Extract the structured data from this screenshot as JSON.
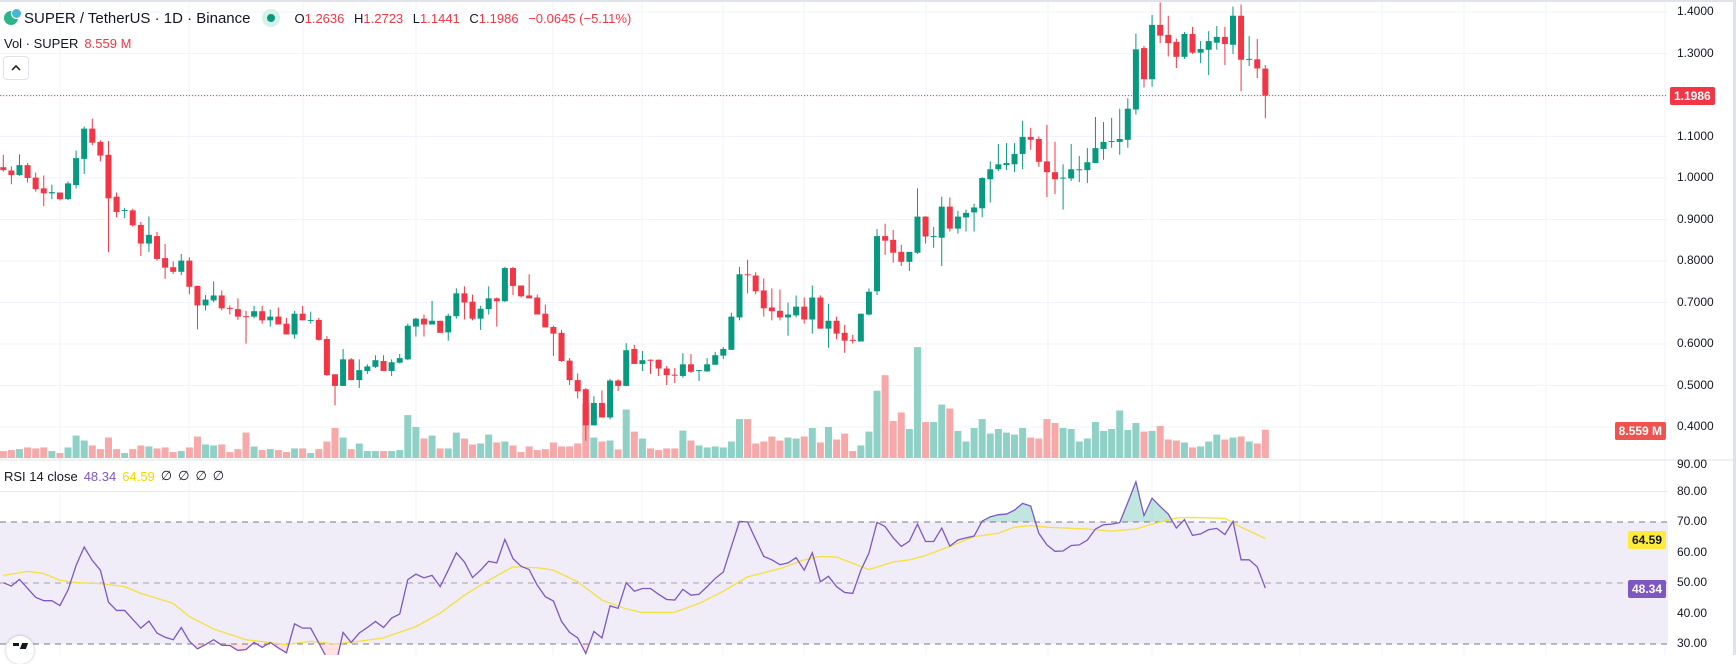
{
  "header": {
    "symbol_title": "SUPER / TetherUS · 1D · Binance",
    "market_status": "open",
    "ohlc": {
      "o_label": "O",
      "o": "1.2636",
      "h_label": "H",
      "h": "1.2723",
      "l_label": "L",
      "l": "1.1441",
      "c_label": "C",
      "c": "1.1986"
    },
    "change": "−0.0645 (−5.11%)"
  },
  "volume_legend": {
    "label": "Vol · SUPER",
    "value": "8.559 M"
  },
  "collapse_button": {
    "icon": "chevron-up-icon",
    "label": "^"
  },
  "rsi_legend": {
    "label": "RSI 14 close",
    "rsi": "48.34",
    "ma": "64.59",
    "extras": [
      "∅",
      "∅",
      "∅",
      "∅"
    ]
  },
  "price_axis": {
    "ticks": [
      "1.4000",
      "1.3000",
      "1.1000",
      "1.0000",
      "0.9000",
      "0.8000",
      "0.7000",
      "0.6000",
      "0.5000",
      "0.4000"
    ],
    "last_price": "1.1986",
    "volume_tag": "8.559 M"
  },
  "rsi_axis": {
    "ticks": [
      "90.00",
      "80.00",
      "70.00",
      "60.00",
      "50.00",
      "40.00",
      "30.00"
    ],
    "rsi_tag": "48.34",
    "ma_tag": "64.59"
  },
  "watermark_logo": "TV",
  "colors": {
    "up": "#089981",
    "down": "#f23645",
    "up_volume": "#8fd1c6",
    "down_volume": "#f7a8a9",
    "rsi_line": "#7e57c2",
    "rsi_ma": "#f5e13c",
    "rsi_band": "#f0ecf8",
    "last_price": "#f23645",
    "volume_tag": "#ef5350"
  },
  "chart_data": {
    "type": "candlestick",
    "ylim": [
      0.4,
      1.4
    ],
    "rsi_ylim": [
      30,
      90
    ],
    "rsi_levels": [
      70,
      50,
      30
    ],
    "ohlc": [
      [
        1.026,
        1.056,
        1.015,
        1.019
      ],
      [
        1.018,
        1.028,
        0.985,
        1.007
      ],
      [
        1.007,
        1.057,
        1.005,
        1.031
      ],
      [
        1.031,
        1.036,
        0.989,
        1.0
      ],
      [
        1.001,
        1.013,
        0.967,
        0.973
      ],
      [
        0.975,
        1.006,
        0.932,
        0.963
      ],
      [
        0.963,
        0.984,
        0.949,
        0.966
      ],
      [
        0.965,
        0.965,
        0.946,
        0.949
      ],
      [
        0.949,
        0.992,
        0.947,
        0.987
      ],
      [
        0.983,
        1.066,
        0.975,
        1.048
      ],
      [
        1.046,
        1.124,
        1.01,
        1.119
      ],
      [
        1.119,
        1.143,
        1.079,
        1.085
      ],
      [
        1.087,
        1.091,
        1.04,
        1.054
      ],
      [
        1.056,
        1.089,
        0.821,
        0.951
      ],
      [
        0.955,
        0.965,
        0.905,
        0.918
      ],
      [
        0.921,
        0.928,
        0.903,
        0.923
      ],
      [
        0.922,
        0.926,
        0.883,
        0.886
      ],
      [
        0.887,
        0.894,
        0.812,
        0.842
      ],
      [
        0.842,
        0.907,
        0.822,
        0.863
      ],
      [
        0.86,
        0.87,
        0.801,
        0.805
      ],
      [
        0.807,
        0.841,
        0.757,
        0.784
      ],
      [
        0.785,
        0.799,
        0.769,
        0.774
      ],
      [
        0.774,
        0.817,
        0.766,
        0.801
      ],
      [
        0.801,
        0.809,
        0.72,
        0.738
      ],
      [
        0.74,
        0.741,
        0.635,
        0.693
      ],
      [
        0.693,
        0.718,
        0.681,
        0.707
      ],
      [
        0.705,
        0.751,
        0.701,
        0.717
      ],
      [
        0.717,
        0.729,
        0.681,
        0.686
      ],
      [
        0.687,
        0.693,
        0.671,
        0.686
      ],
      [
        0.684,
        0.71,
        0.658,
        0.666
      ],
      [
        0.667,
        0.68,
        0.601,
        0.666
      ],
      [
        0.666,
        0.692,
        0.662,
        0.679
      ],
      [
        0.679,
        0.692,
        0.649,
        0.657
      ],
      [
        0.657,
        0.683,
        0.642,
        0.666
      ],
      [
        0.666,
        0.688,
        0.647,
        0.647
      ],
      [
        0.649,
        0.663,
        0.623,
        0.623
      ],
      [
        0.623,
        0.68,
        0.613,
        0.673
      ],
      [
        0.673,
        0.692,
        0.657,
        0.657
      ],
      [
        0.657,
        0.678,
        0.649,
        0.658
      ],
      [
        0.658,
        0.663,
        0.608,
        0.61
      ],
      [
        0.612,
        0.619,
        0.523,
        0.525
      ],
      [
        0.527,
        0.527,
        0.452,
        0.499
      ],
      [
        0.499,
        0.588,
        0.499,
        0.563
      ],
      [
        0.563,
        0.566,
        0.513,
        0.513
      ],
      [
        0.513,
        0.563,
        0.494,
        0.537
      ],
      [
        0.535,
        0.551,
        0.528,
        0.546
      ],
      [
        0.545,
        0.573,
        0.542,
        0.561
      ],
      [
        0.559,
        0.573,
        0.535,
        0.535
      ],
      [
        0.535,
        0.563,
        0.523,
        0.556
      ],
      [
        0.555,
        0.576,
        0.553,
        0.566
      ],
      [
        0.563,
        0.649,
        0.561,
        0.644
      ],
      [
        0.642,
        0.663,
        0.618,
        0.661
      ],
      [
        0.661,
        0.671,
        0.618,
        0.647
      ],
      [
        0.647,
        0.704,
        0.647,
        0.656
      ],
      [
        0.656,
        0.656,
        0.627,
        0.627
      ],
      [
        0.628,
        0.673,
        0.608,
        0.668
      ],
      [
        0.667,
        0.734,
        0.661,
        0.722
      ],
      [
        0.722,
        0.739,
        0.659,
        0.7
      ],
      [
        0.702,
        0.719,
        0.657,
        0.661
      ],
      [
        0.661,
        0.692,
        0.634,
        0.685
      ],
      [
        0.684,
        0.739,
        0.671,
        0.71
      ],
      [
        0.71,
        0.712,
        0.642,
        0.703
      ],
      [
        0.703,
        0.786,
        0.701,
        0.783
      ],
      [
        0.783,
        0.786,
        0.718,
        0.74
      ],
      [
        0.741,
        0.741,
        0.712,
        0.715
      ],
      [
        0.717,
        0.768,
        0.71,
        0.71
      ],
      [
        0.712,
        0.719,
        0.671,
        0.671
      ],
      [
        0.673,
        0.695,
        0.64,
        0.64
      ],
      [
        0.641,
        0.644,
        0.571,
        0.625
      ],
      [
        0.627,
        0.634,
        0.557,
        0.559
      ],
      [
        0.56,
        0.566,
        0.501,
        0.513
      ],
      [
        0.513,
        0.529,
        0.469,
        0.486
      ],
      [
        0.491,
        0.494,
        0.367,
        0.404
      ],
      [
        0.404,
        0.474,
        0.404,
        0.458
      ],
      [
        0.458,
        0.488,
        0.423,
        0.423
      ],
      [
        0.423,
        0.516,
        0.418,
        0.512
      ],
      [
        0.512,
        0.515,
        0.487,
        0.499
      ],
      [
        0.499,
        0.602,
        0.499,
        0.585
      ],
      [
        0.588,
        0.598,
        0.552,
        0.552
      ],
      [
        0.552,
        0.583,
        0.535,
        0.561
      ],
      [
        0.562,
        0.563,
        0.528,
        0.56
      ],
      [
        0.562,
        0.563,
        0.523,
        0.541
      ],
      [
        0.541,
        0.547,
        0.501,
        0.525
      ],
      [
        0.526,
        0.542,
        0.506,
        0.525
      ],
      [
        0.523,
        0.578,
        0.519,
        0.551
      ],
      [
        0.551,
        0.576,
        0.53,
        0.533
      ],
      [
        0.535,
        0.537,
        0.511,
        0.537
      ],
      [
        0.534,
        0.566,
        0.533,
        0.551
      ],
      [
        0.55,
        0.581,
        0.55,
        0.573
      ],
      [
        0.572,
        0.593,
        0.564,
        0.588
      ],
      [
        0.586,
        0.675,
        0.586,
        0.666
      ],
      [
        0.664,
        0.786,
        0.657,
        0.768
      ],
      [
        0.768,
        0.803,
        0.722,
        0.767
      ],
      [
        0.765,
        0.773,
        0.72,
        0.727
      ],
      [
        0.729,
        0.758,
        0.666,
        0.686
      ],
      [
        0.688,
        0.734,
        0.657,
        0.679
      ],
      [
        0.68,
        0.731,
        0.657,
        0.664
      ],
      [
        0.664,
        0.7,
        0.62,
        0.671
      ],
      [
        0.669,
        0.717,
        0.664,
        0.69
      ],
      [
        0.69,
        0.712,
        0.649,
        0.659
      ],
      [
        0.659,
        0.741,
        0.625,
        0.712
      ],
      [
        0.712,
        0.717,
        0.637,
        0.637
      ],
      [
        0.637,
        0.697,
        0.591,
        0.656
      ],
      [
        0.656,
        0.666,
        0.611,
        0.625
      ],
      [
        0.627,
        0.646,
        0.579,
        0.608
      ],
      [
        0.61,
        0.622,
        0.601,
        0.608
      ],
      [
        0.606,
        0.673,
        0.606,
        0.673
      ],
      [
        0.671,
        0.734,
        0.669,
        0.726
      ],
      [
        0.727,
        0.877,
        0.718,
        0.86
      ],
      [
        0.86,
        0.89,
        0.815,
        0.849
      ],
      [
        0.851,
        0.875,
        0.796,
        0.82
      ],
      [
        0.822,
        0.839,
        0.788,
        0.798
      ],
      [
        0.798,
        0.822,
        0.776,
        0.822
      ],
      [
        0.82,
        0.975,
        0.817,
        0.907
      ],
      [
        0.907,
        0.908,
        0.842,
        0.859
      ],
      [
        0.859,
        0.882,
        0.832,
        0.86
      ],
      [
        0.856,
        0.955,
        0.788,
        0.931
      ],
      [
        0.931,
        0.953,
        0.871,
        0.878
      ],
      [
        0.878,
        0.921,
        0.866,
        0.907
      ],
      [
        0.905,
        0.924,
        0.871,
        0.916
      ],
      [
        0.917,
        0.938,
        0.871,
        0.929
      ],
      [
        0.927,
        1.002,
        0.905,
        1.0
      ],
      [
        0.997,
        1.04,
        0.941,
        1.021
      ],
      [
        1.021,
        1.082,
        1.017,
        1.033
      ],
      [
        1.031,
        1.084,
        1.019,
        1.036
      ],
      [
        1.033,
        1.084,
        1.014,
        1.058
      ],
      [
        1.058,
        1.138,
        1.021,
        1.099
      ],
      [
        1.099,
        1.121,
        1.068,
        1.092
      ],
      [
        1.094,
        1.1,
        1.027,
        1.039
      ],
      [
        1.04,
        1.128,
        0.954,
        1.014
      ],
      [
        1.014,
        1.087,
        0.961,
        0.997
      ],
      [
        0.999,
        1.033,
        0.924,
        1.001
      ],
      [
        0.999,
        1.082,
        0.993,
        1.021
      ],
      [
        1.019,
        1.053,
        0.99,
        1.021
      ],
      [
        1.019,
        1.072,
        0.988,
        1.038
      ],
      [
        1.036,
        1.147,
        1.036,
        1.072
      ],
      [
        1.07,
        1.135,
        1.044,
        1.087
      ],
      [
        1.087,
        1.145,
        1.073,
        1.089
      ],
      [
        1.087,
        1.167,
        1.056,
        1.094
      ],
      [
        1.092,
        1.192,
        1.073,
        1.167
      ],
      [
        1.165,
        1.348,
        1.153,
        1.31
      ],
      [
        1.313,
        1.318,
        1.218,
        1.238
      ],
      [
        1.238,
        1.393,
        1.22,
        1.369
      ],
      [
        1.369,
        1.423,
        1.325,
        1.343
      ],
      [
        1.345,
        1.391,
        1.293,
        1.325
      ],
      [
        1.328,
        1.336,
        1.265,
        1.292
      ],
      [
        1.292,
        1.352,
        1.287,
        1.347
      ],
      [
        1.347,
        1.364,
        1.299,
        1.302
      ],
      [
        1.302,
        1.33,
        1.277,
        1.311
      ],
      [
        1.309,
        1.354,
        1.248,
        1.33
      ],
      [
        1.326,
        1.366,
        1.309,
        1.34
      ],
      [
        1.34,
        1.364,
        1.272,
        1.323
      ],
      [
        1.321,
        1.413,
        1.299,
        1.391
      ],
      [
        1.391,
        1.418,
        1.209,
        1.285
      ],
      [
        1.285,
        1.342,
        1.27,
        1.287
      ],
      [
        1.286,
        1.335,
        1.241,
        1.264
      ],
      [
        1.2636,
        1.2723,
        1.1441,
        1.1986
      ]
    ],
    "volume_millions": [
      2.1,
      2.4,
      2.7,
      3.2,
      2.9,
      3.2,
      2.1,
      1.5,
      3.2,
      6.8,
      5.3,
      3.8,
      2.7,
      6.2,
      2.7,
      1.5,
      2.7,
      3.8,
      3.5,
      2.9,
      3.2,
      1.8,
      2.1,
      3.2,
      6.5,
      4.1,
      3.8,
      4.1,
      1.8,
      2.7,
      7.7,
      3.5,
      2.4,
      2.7,
      2.4,
      1.8,
      2.9,
      2.9,
      1.5,
      2.7,
      5.0,
      9.1,
      6.2,
      2.7,
      4.4,
      2.1,
      2.1,
      2.1,
      2.1,
      2.4,
      13.0,
      9.4,
      5.9,
      6.8,
      2.9,
      2.9,
      7.7,
      5.9,
      4.1,
      4.4,
      7.1,
      4.7,
      5.0,
      3.8,
      1.8,
      3.5,
      2.4,
      2.7,
      4.7,
      3.5,
      3.5,
      4.4,
      16.5,
      6.2,
      5.0,
      5.3,
      2.6,
      14.7,
      8.0,
      5.9,
      2.9,
      2.4,
      2.9,
      2.9,
      8.3,
      5.3,
      3.8,
      3.2,
      3.5,
      3.2,
      5.0,
      11.8,
      11.8,
      4.4,
      5.0,
      6.5,
      5.3,
      6.2,
      5.9,
      6.5,
      9.1,
      4.7,
      9.4,
      5.6,
      7.4,
      2.1,
      3.8,
      8.0,
      20.4,
      25.1,
      11.2,
      13.8,
      8.8,
      33.6,
      10.9,
      10.9,
      16.2,
      15.0,
      8.2,
      5.0,
      9.1,
      11.8,
      7.4,
      8.8,
      7.7,
      7.1,
      9.1,
      6.2,
      5.9,
      11.8,
      10.6,
      9.1,
      8.8,
      5.0,
      5.9,
      10.9,
      8.2,
      8.8,
      14.4,
      8.5,
      10.6,
      8.0,
      8.2,
      9.7,
      5.6,
      5.3,
      4.7,
      3.2,
      3.5,
      5.0,
      7.1,
      5.6,
      6.2,
      6.5,
      5.0,
      4.4,
      8.559
    ],
    "rsi": [
      50.1,
      49,
      51.2,
      48.2,
      45.3,
      44.2,
      44.2,
      42.6,
      47.7,
      55.8,
      61.8,
      57.4,
      54.2,
      43.7,
      41,
      41,
      38.1,
      35.2,
      37.5,
      33.6,
      32.2,
      31.4,
      35.4,
      30.9,
      28.4,
      29.8,
      31.4,
      29.6,
      29.5,
      27.9,
      28.2,
      30.5,
      28.9,
      30.5,
      28.7,
      27.1,
      36.6,
      35.2,
      35.2,
      30.3,
      25.4,
      22,
      33.8,
      30.5,
      33.6,
      35.4,
      37.4,
      35.4,
      38.5,
      39.8,
      51.1,
      52.9,
      51.7,
      52.5,
      48.8,
      54.2,
      59.9,
      56.9,
      51.8,
      54.2,
      57.1,
      56.6,
      64.3,
      58,
      55.5,
      54.4,
      49.3,
      45.5,
      44.1,
      37.4,
      33.8,
      32,
      26.9,
      34.1,
      32,
      42.5,
      41.7,
      50.1,
      47.3,
      48.2,
      48.2,
      46.3,
      44.6,
      44.4,
      47.9,
      46,
      46.3,
      48.8,
      51.5,
      53.6,
      62,
      70.2,
      70,
      64.3,
      58.7,
      57.6,
      56,
      56.6,
      58.3,
      54.2,
      59.9,
      50.4,
      52.2,
      48.8,
      46.9,
      46.6,
      54.2,
      59.8,
      69.9,
      68.5,
      64.8,
      62,
      63.7,
      69.3,
      63.6,
      63.6,
      68,
      62.1,
      64.1,
      64.8,
      65.4,
      70.3,
      71.7,
      72.4,
      72.6,
      73.9,
      76.1,
      75.2,
      66.3,
      62.5,
      60.4,
      60.5,
      62.3,
      62.5,
      64.1,
      67.7,
      69.1,
      69.3,
      69.8,
      76.4,
      83.2,
      72.1,
      77.8,
      75.1,
      72.6,
      68,
      70.8,
      65.6,
      66.1,
      67.5,
      67.9,
      65.9,
      70.2,
      57.6,
      57.6,
      55.3,
      48.34
    ],
    "rsi_ma": [
      [
        1,
        52.5
      ],
      [
        4,
        53.8
      ],
      [
        6,
        53.1
      ],
      [
        8,
        50.9
      ],
      [
        10,
        50.1
      ],
      [
        13,
        49.8
      ],
      [
        16,
        48.8
      ],
      [
        18,
        46.6
      ],
      [
        22,
        43.3
      ],
      [
        24,
        39
      ],
      [
        27,
        34.9
      ],
      [
        31,
        31.4
      ],
      [
        36,
        29.8
      ],
      [
        39,
        30.9
      ],
      [
        42,
        30
      ],
      [
        45,
        30.9
      ],
      [
        48,
        32
      ],
      [
        52,
        35.7
      ],
      [
        55,
        40.1
      ],
      [
        58,
        46
      ],
      [
        61,
        50.9
      ],
      [
        64,
        55.3
      ],
      [
        67,
        55
      ],
      [
        69,
        54.2
      ],
      [
        72,
        50.4
      ],
      [
        75,
        44.4
      ],
      [
        78,
        41.5
      ],
      [
        80,
        40.3
      ],
      [
        84,
        40.4
      ],
      [
        87,
        43.3
      ],
      [
        90,
        47.3
      ],
      [
        93,
        52
      ],
      [
        97,
        54.7
      ],
      [
        100,
        57.6
      ],
      [
        102,
        58.7
      ],
      [
        104,
        58.5
      ],
      [
        108,
        54.4
      ],
      [
        111,
        56.9
      ],
      [
        113,
        57.6
      ],
      [
        115,
        59
      ],
      [
        118,
        62
      ],
      [
        121,
        65.2
      ],
      [
        124,
        66.3
      ],
      [
        126,
        68.3
      ],
      [
        128,
        68.8
      ],
      [
        130,
        68.3
      ],
      [
        135,
        67.7
      ],
      [
        138,
        67
      ],
      [
        141,
        67.7
      ],
      [
        143,
        69.3
      ],
      [
        146,
        71.3
      ],
      [
        148,
        71.5
      ],
      [
        152,
        71.2
      ],
      [
        154,
        68.3
      ],
      [
        157,
        64.59
      ]
    ]
  }
}
